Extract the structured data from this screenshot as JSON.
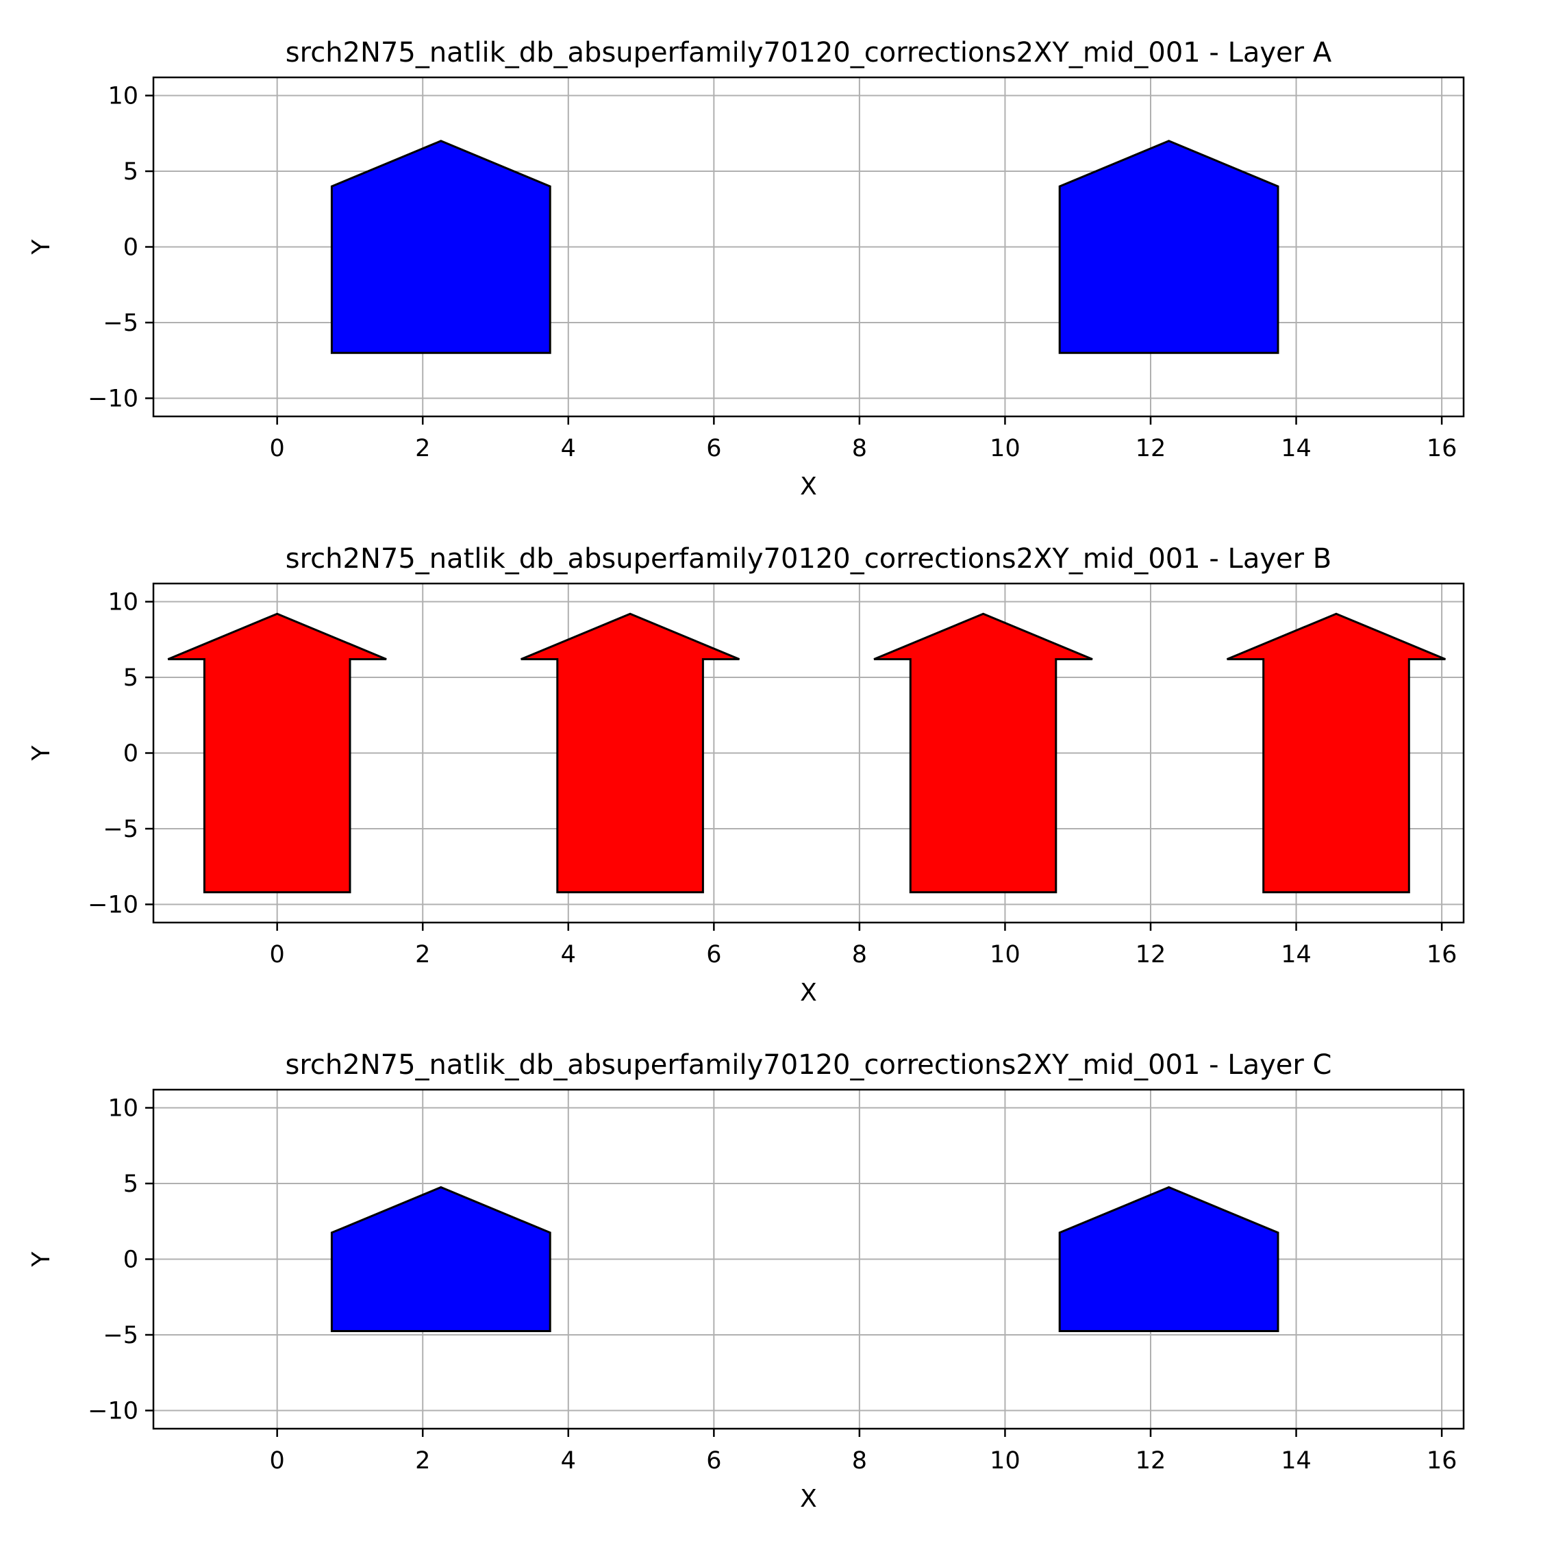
{
  "chart_data": [
    {
      "type": "polygon",
      "title": "srch2N75_natlik_db_absuperfamily70120_corrections2XY_mid_001 - Layer A",
      "xlabel": "X",
      "ylabel": "Y",
      "xlim": [
        -1.7,
        16.3
      ],
      "ylim": [
        -11.2,
        11.2
      ],
      "xticks": [
        0,
        2,
        4,
        6,
        8,
        10,
        12,
        14,
        16
      ],
      "yticks": [
        -10,
        -5,
        0,
        5,
        10
      ],
      "xtick_labels": [
        "0",
        "2",
        "4",
        "6",
        "8",
        "10",
        "12",
        "14",
        "16"
      ],
      "ytick_labels": [
        "−10",
        "−5",
        "0",
        "5",
        "10"
      ],
      "grid": true,
      "shapes": [
        {
          "fill": "#0000ff",
          "points": [
            [
              0.75,
              -7
            ],
            [
              3.75,
              -7
            ],
            [
              3.75,
              4
            ],
            [
              2.25,
              7
            ],
            [
              0.75,
              4
            ]
          ]
        },
        {
          "fill": "#0000ff",
          "points": [
            [
              10.75,
              -7
            ],
            [
              13.75,
              -7
            ],
            [
              13.75,
              4
            ],
            [
              12.25,
              7
            ],
            [
              10.75,
              4
            ]
          ]
        }
      ]
    },
    {
      "type": "polygon",
      "title": "srch2N75_natlik_db_absuperfamily70120_corrections2XY_mid_001 - Layer B",
      "xlabel": "X",
      "ylabel": "Y",
      "xlim": [
        -1.7,
        16.3
      ],
      "ylim": [
        -11.2,
        11.2
      ],
      "xticks": [
        0,
        2,
        4,
        6,
        8,
        10,
        12,
        14,
        16
      ],
      "yticks": [
        -10,
        -5,
        0,
        5,
        10
      ],
      "xtick_labels": [
        "0",
        "2",
        "4",
        "6",
        "8",
        "10",
        "12",
        "14",
        "16"
      ],
      "ytick_labels": [
        "−10",
        "−5",
        "0",
        "5",
        "10"
      ],
      "grid": true,
      "shapes": [
        {
          "fill": "#ff0000",
          "points": [
            [
              -1,
              -9.2
            ],
            [
              1,
              -9.2
            ],
            [
              1,
              6.2
            ],
            [
              1.5,
              6.2
            ],
            [
              0,
              9.2
            ],
            [
              -1.5,
              6.2
            ],
            [
              -1,
              6.2
            ]
          ]
        },
        {
          "fill": "#ff0000",
          "points": [
            [
              3.85,
              -9.2
            ],
            [
              5.85,
              -9.2
            ],
            [
              5.85,
              6.2
            ],
            [
              6.35,
              6.2
            ],
            [
              4.85,
              9.2
            ],
            [
              3.35,
              6.2
            ],
            [
              3.85,
              6.2
            ]
          ]
        },
        {
          "fill": "#ff0000",
          "points": [
            [
              8.7,
              -9.2
            ],
            [
              10.7,
              -9.2
            ],
            [
              10.7,
              6.2
            ],
            [
              11.2,
              6.2
            ],
            [
              9.7,
              9.2
            ],
            [
              8.2,
              6.2
            ],
            [
              8.7,
              6.2
            ]
          ]
        },
        {
          "fill": "#ff0000",
          "points": [
            [
              13.55,
              -9.2
            ],
            [
              15.55,
              -9.2
            ],
            [
              15.55,
              6.2
            ],
            [
              16.05,
              6.2
            ],
            [
              14.55,
              9.2
            ],
            [
              13.05,
              6.2
            ],
            [
              13.55,
              6.2
            ]
          ]
        }
      ]
    },
    {
      "type": "polygon",
      "title": "srch2N75_natlik_db_absuperfamily70120_corrections2XY_mid_001 - Layer C",
      "xlabel": "X",
      "ylabel": "Y",
      "xlim": [
        -1.7,
        16.3
      ],
      "ylim": [
        -11.2,
        11.2
      ],
      "xticks": [
        0,
        2,
        4,
        6,
        8,
        10,
        12,
        14,
        16
      ],
      "yticks": [
        -10,
        -5,
        0,
        5,
        10
      ],
      "xtick_labels": [
        "0",
        "2",
        "4",
        "6",
        "8",
        "10",
        "12",
        "14",
        "16"
      ],
      "ytick_labels": [
        "−10",
        "−5",
        "0",
        "5",
        "10"
      ],
      "grid": true,
      "shapes": [
        {
          "fill": "#0000ff",
          "points": [
            [
              0.75,
              -4.75
            ],
            [
              3.75,
              -4.75
            ],
            [
              3.75,
              1.75
            ],
            [
              2.25,
              4.75
            ],
            [
              0.75,
              1.75
            ]
          ]
        },
        {
          "fill": "#0000ff",
          "points": [
            [
              10.75,
              -4.75
            ],
            [
              13.75,
              -4.75
            ],
            [
              13.75,
              1.75
            ],
            [
              12.25,
              4.75
            ],
            [
              10.75,
              1.75
            ]
          ]
        }
      ]
    }
  ]
}
